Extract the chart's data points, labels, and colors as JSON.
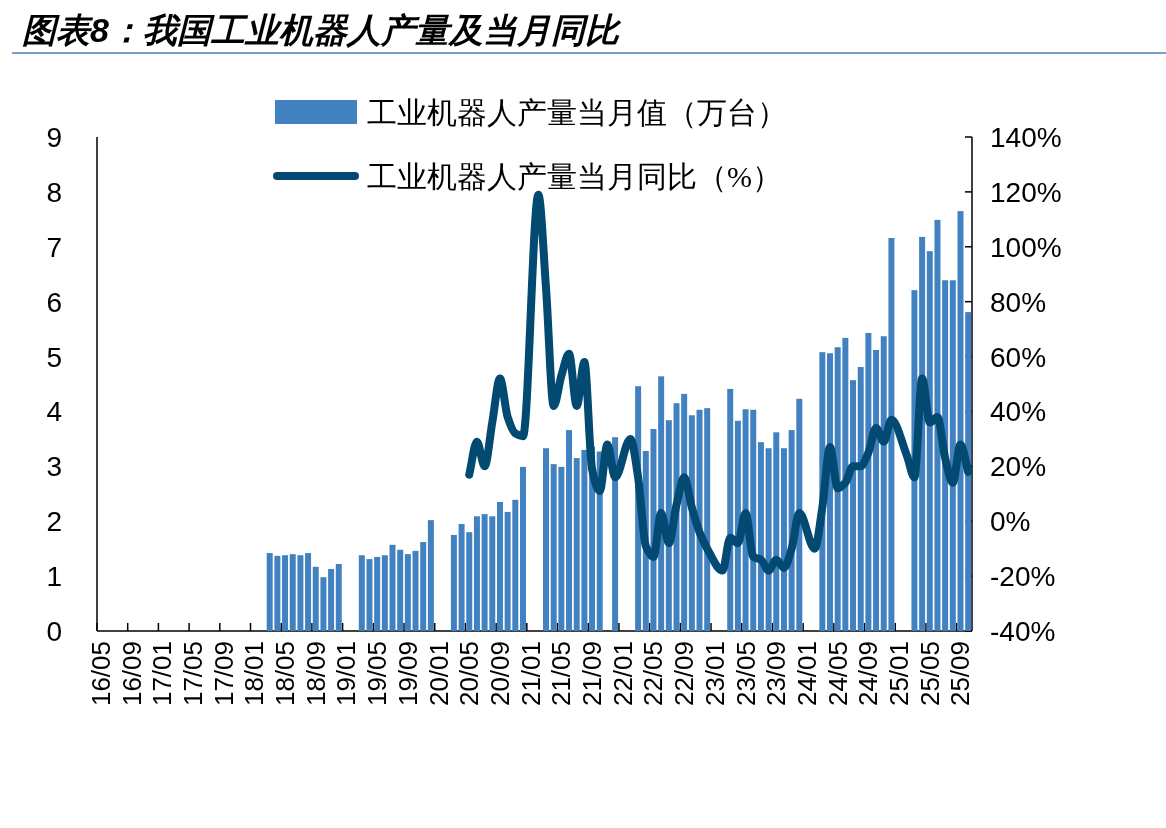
{
  "chart_data": {
    "type": "bar",
    "title": "图表8：我国工业机器人产量及当月同比",
    "categories": [
      "16/05",
      null,
      null,
      null,
      "16/09",
      null,
      null,
      null,
      "17/01",
      null,
      null,
      null,
      "17/05",
      null,
      null,
      null,
      "17/09",
      null,
      null,
      null,
      "18/01",
      null,
      null,
      null,
      "18/05",
      null,
      null,
      null,
      "18/09",
      null,
      null,
      null,
      "19/01",
      null,
      null,
      null,
      "19/05",
      null,
      null,
      null,
      "19/09",
      null,
      null,
      null,
      "20/01",
      null,
      null,
      null,
      "20/05",
      null,
      null,
      null,
      "20/09",
      null,
      null,
      null,
      "21/01",
      null,
      null,
      null,
      "21/05",
      null,
      null,
      null,
      "21/09",
      null,
      null,
      null,
      "22/01",
      null,
      null,
      null,
      "22/05",
      null,
      null,
      null,
      "22/09",
      null,
      null,
      null,
      "23/01",
      null,
      null,
      null,
      "23/05",
      null,
      null,
      null,
      "23/09",
      null,
      null,
      null,
      "24/01",
      null,
      null,
      null,
      "24/05",
      null,
      null,
      null,
      "24/09",
      null,
      null,
      null,
      "25/01",
      null,
      null,
      null,
      "25/05",
      null,
      null,
      null,
      "25/09",
      null
    ],
    "series": [
      {
        "name": "工业机器人产量当月值（万台）",
        "color": "#4181c0",
        "values": [
          null,
          null,
          null,
          null,
          null,
          null,
          null,
          null,
          null,
          null,
          null,
          null,
          null,
          null,
          null,
          null,
          null,
          null,
          null,
          null,
          null,
          null,
          1.42,
          1.37,
          1.38,
          1.4,
          1.38,
          1.42,
          1.17,
          0.98,
          1.13,
          1.22,
          null,
          null,
          1.38,
          1.31,
          1.35,
          1.38,
          1.57,
          1.48,
          1.4,
          1.46,
          1.62,
          2.02,
          null,
          null,
          1.75,
          1.95,
          1.8,
          2.09,
          2.13,
          2.09,
          2.35,
          2.17,
          2.39,
          2.99,
          null,
          null,
          3.33,
          3.04,
          2.99,
          3.66,
          3.15,
          3.3,
          3.36,
          3.27,
          null,
          3.53,
          null,
          null,
          4.46,
          3.28,
          3.68,
          4.64,
          3.84,
          4.15,
          4.32,
          3.93,
          4.03,
          4.06,
          null,
          null,
          4.41,
          3.83,
          4.04,
          4.03,
          3.44,
          3.33,
          3.62,
          3.33,
          3.66,
          4.23,
          null,
          null,
          5.08,
          5.06,
          5.17,
          5.34,
          4.57,
          4.81,
          5.43,
          5.12,
          5.37,
          7.16,
          null,
          null,
          6.21,
          7.18,
          6.92,
          7.49,
          6.39,
          6.39,
          7.65,
          5.81
        ]
      },
      {
        "name": "工业机器人产量当月同比（%）",
        "type": "line",
        "axis": "y2",
        "color": "#034a73",
        "values": [
          null,
          null,
          null,
          null,
          null,
          null,
          null,
          null,
          null,
          null,
          null,
          null,
          null,
          null,
          null,
          null,
          null,
          null,
          null,
          null,
          null,
          null,
          null,
          null,
          null,
          null,
          null,
          null,
          null,
          null,
          null,
          null,
          null,
          null,
          null,
          null,
          null,
          null,
          null,
          null,
          null,
          null,
          null,
          null,
          null,
          null,
          null,
          null,
          17,
          29,
          20,
          36,
          52,
          38,
          32,
          31,
          null,
          119,
          85,
          42,
          53,
          61,
          42,
          58,
          19,
          11,
          28,
          16,
          null,
          30,
          16,
          -9,
          -13,
          3,
          -8,
          6,
          16,
          5,
          -4,
          -10,
          null,
          -18,
          -6,
          -8,
          3,
          -13,
          -14,
          -18,
          -14,
          -17,
          -10,
          3,
          null,
          -10,
          5,
          27,
          12,
          14,
          20,
          20,
          25,
          34,
          29,
          37,
          null,
          24,
          16,
          52,
          36,
          38,
          23,
          14,
          28,
          18
        ]
      }
    ],
    "ylim": [
      0,
      9
    ],
    "yticks": [
      0,
      1,
      2,
      3,
      4,
      5,
      6,
      7,
      8,
      9
    ],
    "y2lim": [
      -40,
      140
    ],
    "y2ticks": [
      {
        "value": -40,
        "label": "-40%"
      },
      {
        "value": -20,
        "label": "-20%"
      },
      {
        "value": 0,
        "label": "0%"
      },
      {
        "value": 20,
        "label": "20%"
      },
      {
        "value": 40,
        "label": "40%"
      },
      {
        "value": 60,
        "label": "60%"
      },
      {
        "value": 80,
        "label": "80%"
      },
      {
        "value": 100,
        "label": "100%"
      },
      {
        "value": 120,
        "label": "120%"
      },
      {
        "value": 140,
        "label": "140%"
      }
    ],
    "legend": "top"
  }
}
